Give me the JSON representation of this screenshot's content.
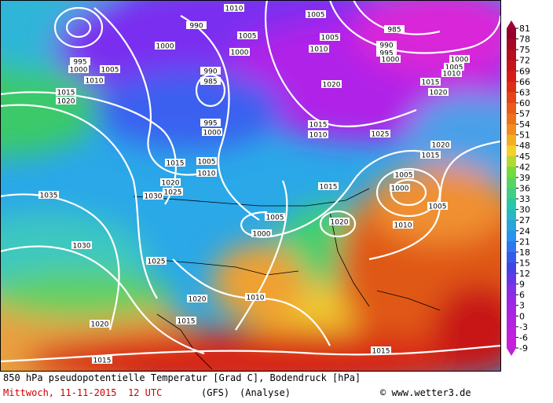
{
  "map": {
    "isobar_labels": [
      "1010",
      "1005",
      "985",
      "990",
      "1005",
      "1000",
      "995",
      "1000",
      "1005",
      "1010",
      "990",
      "985",
      "1000",
      "1010",
      "1005",
      "1020",
      "1015",
      "1020",
      "1015",
      "1020",
      "995",
      "1000",
      "1015",
      "1010",
      "1025",
      "1020",
      "1015",
      "1015",
      "1005",
      "1010",
      "1020",
      "1025",
      "1030",
      "1035",
      "1015",
      "1005",
      "1000",
      "1005",
      "1010",
      "1005",
      "1000",
      "1020",
      "1030",
      "1025",
      "1020",
      "1010",
      "1015",
      "1020",
      "1015",
      "1015",
      "990",
      "995",
      "1000",
      "1000",
      "1005",
      "1010"
    ]
  },
  "colorbar": {
    "ticks": [
      81,
      78,
      75,
      72,
      69,
      66,
      63,
      60,
      57,
      54,
      51,
      48,
      45,
      42,
      39,
      36,
      33,
      30,
      27,
      24,
      21,
      18,
      15,
      12,
      9,
      6,
      3,
      0,
      -3,
      -6,
      -9
    ]
  },
  "caption": {
    "line1": "850 hPa pseudopotentielle Temperatur [Grad C], Bodendruck [hPa]",
    "date": "Mittwoch, 11-11-2015  12 UTC",
    "model": "(GFS)",
    "run": "(Analyse)",
    "credit": "© www.wetter3.de"
  }
}
